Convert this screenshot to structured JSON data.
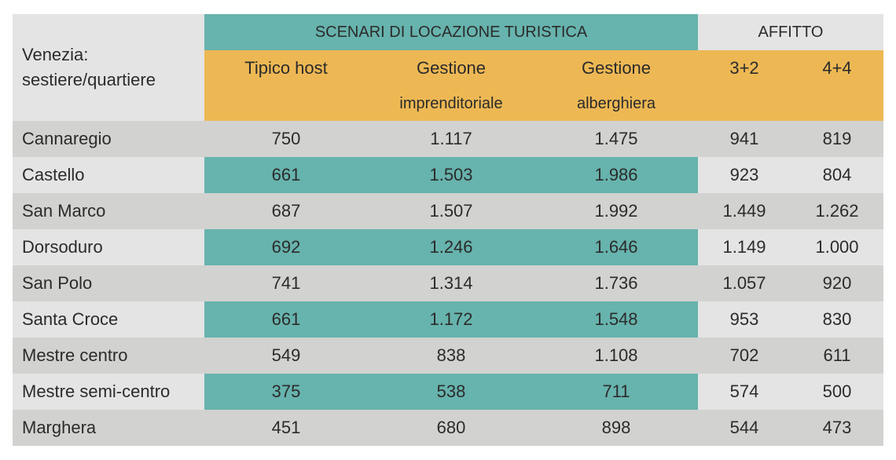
{
  "table": {
    "corner_label_line1": "Venezia:",
    "corner_label_line2": "sestiere/quartiere",
    "group_headers": {
      "tourist": "SCENARI DI LOCAZIONE TURISTICA",
      "rent": "AFFITTO"
    },
    "columns": [
      {
        "line1": "Tipico host",
        "line2": ""
      },
      {
        "line1": "Gestione",
        "line2": "imprenditoriale"
      },
      {
        "line1": "Gestione",
        "line2": "alberghiera"
      },
      {
        "line1": "3+2",
        "line2": ""
      },
      {
        "line1": "4+4",
        "line2": ""
      }
    ],
    "rows": [
      {
        "name": "Cannaregio",
        "values": [
          "750",
          "1.117",
          "1.475",
          "941",
          "819"
        ]
      },
      {
        "name": "Castello",
        "values": [
          "661",
          "1.503",
          "1.986",
          "923",
          "804"
        ]
      },
      {
        "name": "San Marco",
        "values": [
          "687",
          "1.507",
          "1.992",
          "1.449",
          "1.262"
        ]
      },
      {
        "name": "Dorsoduro",
        "values": [
          "692",
          "1.246",
          "1.646",
          "1.149",
          "1.000"
        ]
      },
      {
        "name": "San Polo",
        "values": [
          "741",
          "1.314",
          "1.736",
          "1.057",
          "920"
        ]
      },
      {
        "name": "Santa Croce",
        "values": [
          "661",
          "1.172",
          "1.548",
          "953",
          "830"
        ]
      },
      {
        "name": "Mestre centro",
        "values": [
          "549",
          "838",
          "1.108",
          "702",
          "611"
        ]
      },
      {
        "name": "Mestre semi-centro",
        "values": [
          "375",
          "538",
          "711",
          "574",
          "500"
        ]
      },
      {
        "name": "Marghera",
        "values": [
          "451",
          "680",
          "898",
          "544",
          "473"
        ]
      }
    ],
    "colors": {
      "teal": "#67b3ad",
      "orange": "#edb854",
      "grey": "#d2d2d0",
      "light": "#e4e4e4"
    }
  }
}
